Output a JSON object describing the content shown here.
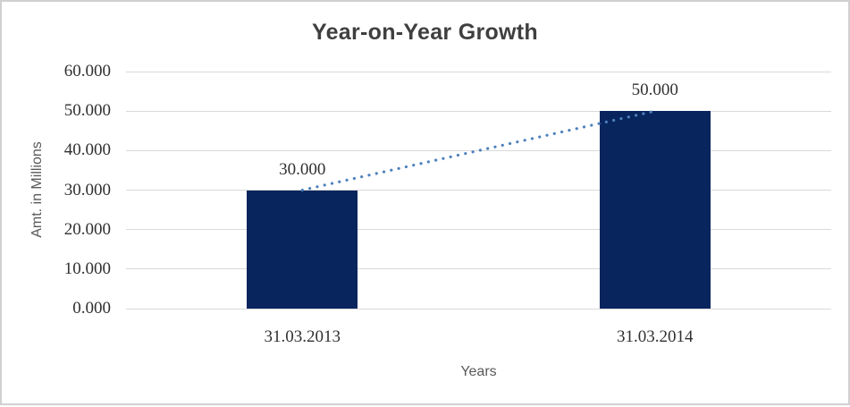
{
  "window": {
    "background": "#FFFFFF",
    "border_color": "#D0D0D0"
  },
  "chart_data": {
    "type": "bar",
    "title": "Year-on-Year Growth",
    "xlabel": "Years",
    "ylabel": "Amt. in Millions",
    "categories": [
      "31.03.2013",
      "31.03.2014"
    ],
    "values": [
      30.0,
      50.0
    ],
    "data_labels": [
      "30.000",
      "50.000"
    ],
    "ylim": [
      0,
      60
    ],
    "ytick_values": [
      0,
      10,
      20,
      30,
      40,
      50,
      60
    ],
    "ytick_labels": [
      "0.000",
      "10.000",
      "20.000",
      "30.000",
      "40.000",
      "50.000",
      "60.000"
    ],
    "grid": true,
    "legend": "none",
    "trendline": {
      "type": "linear",
      "style": "dotted",
      "connects": [
        "31.03.2013",
        "31.03.2014"
      ],
      "from_value": 30.0,
      "to_value": 50.0
    },
    "colors": {
      "bar": "#08255E",
      "trendline": "#4E81BD",
      "gridline": "#D9D9D9",
      "title_text": "#3F3F3F",
      "tick_text": "#303030",
      "axis_title_text": "#595959",
      "border": "#D0D0D0",
      "background": "#FFFFFF"
    }
  }
}
